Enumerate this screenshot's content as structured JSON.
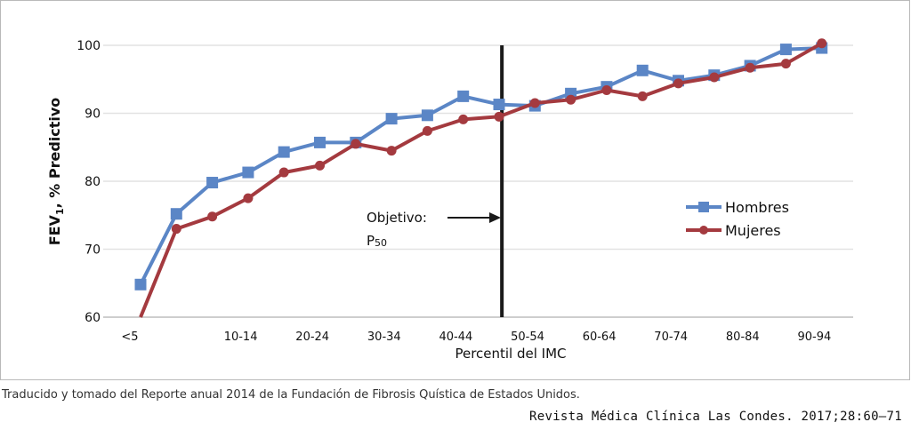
{
  "chart_data": {
    "type": "line",
    "xlabel": "Percentil del IMC",
    "ylabel_main": "FEV",
    "ylabel_sub": "1",
    "ylabel_rest": ", % Predictivo",
    "ylim": [
      60,
      100
    ],
    "yticks": [
      60,
      70,
      80,
      90,
      100
    ],
    "x_tick_labels": [
      "<5",
      "10-14",
      "20-24",
      "30-34",
      "40-44",
      "50-54",
      "60-64",
      "70-74",
      "80-84",
      "90-94"
    ],
    "x_tick_indices": [
      0,
      2,
      4,
      6,
      8,
      10,
      12,
      14,
      16,
      18
    ],
    "x_count": 20,
    "grid": "horizontal",
    "series": [
      {
        "name": "Hombres",
        "color": "#5b86c6",
        "marker": "square",
        "values": [
          64.8,
          75.2,
          79.8,
          81.3,
          84.3,
          85.7,
          85.7,
          89.2,
          89.7,
          92.5,
          91.3,
          91.1,
          92.9,
          93.9,
          96.3,
          94.8,
          95.6,
          97.0,
          99.4,
          99.6
        ]
      },
      {
        "name": "Mujeres",
        "color": "#a43a3f",
        "marker": "circle",
        "values": [
          59.8,
          73.0,
          74.8,
          77.5,
          81.3,
          82.3,
          85.5,
          84.5,
          87.4,
          89.1,
          89.5,
          91.5,
          92.0,
          93.4,
          92.5,
          94.4,
          95.3,
          96.7,
          97.3,
          100.3
        ]
      }
    ],
    "annotation": {
      "line1": "Objetivo:",
      "line2_main": "P",
      "line2_sub": "50",
      "reference_index": 10.5
    },
    "legend_position": "right"
  },
  "caption": "Traducido y tomado del Reporte anual 2014 de la Fundación de Fibrosis Quística de Estados Unidos.",
  "citation": "Revista Médica Clínica Las Condes. 2017;28:60–71"
}
